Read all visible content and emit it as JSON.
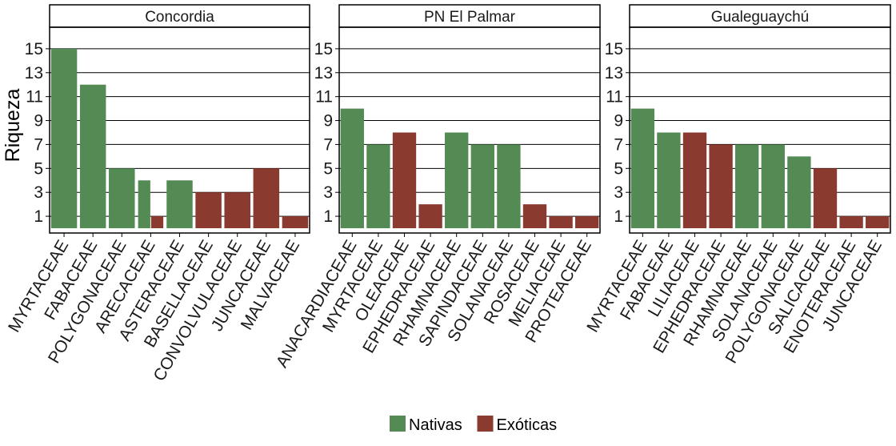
{
  "chart_data": {
    "type": "bar",
    "ylabel": "Riqueza",
    "yticks": [
      1,
      3,
      5,
      7,
      9,
      11,
      13,
      15
    ],
    "ylim": [
      -0.4,
      16.8
    ],
    "grid": true,
    "legend_position": "bottom",
    "colors": {
      "Nativas": "#548b54",
      "Exóticas": "#8b3a2f"
    },
    "legend": [
      {
        "label": "Nativas",
        "color": "#548b54"
      },
      {
        "label": "Exóticas",
        "color": "#8b3a2f"
      }
    ],
    "panels": [
      {
        "title": "Concordia",
        "categories": [
          "MYRTACEAE",
          "FABACEAE",
          "POLYGONACEAE",
          "ARECACEAE",
          "ASTERACEAE",
          "BASELLACEAE",
          "CONVOLVULACEAE",
          "JUNCACEAE",
          "MALVACEAE"
        ],
        "bars": [
          {
            "category": "MYRTACEAE",
            "group": "Nativas",
            "value": 15
          },
          {
            "category": "FABACEAE",
            "group": "Nativas",
            "value": 12
          },
          {
            "category": "POLYGONACEAE",
            "group": "Nativas",
            "value": 5
          },
          {
            "category": "ARECACEAE",
            "group": "Nativas",
            "value": 4
          },
          {
            "category": "ARECACEAE",
            "group": "Exóticas",
            "value": 1
          },
          {
            "category": "ASTERACEAE",
            "group": "Nativas",
            "value": 4
          },
          {
            "category": "BASELLACEAE",
            "group": "Exóticas",
            "value": 3
          },
          {
            "category": "CONVOLVULACEAE",
            "group": "Exóticas",
            "value": 3
          },
          {
            "category": "JUNCACEAE",
            "group": "Exóticas",
            "value": 5
          },
          {
            "category": "MALVACEAE",
            "group": "Exóticas",
            "value": 1
          }
        ]
      },
      {
        "title": "PN El Palmar",
        "categories": [
          "ANACARDIACEAE",
          "MYRTACEAE",
          "OLEACEAE",
          "EPHEDRACEAE",
          "RHAMNACEAE",
          "SAPINDACEAE",
          "SOLANACEAE",
          "ROSACEAE",
          "MELIACEAE",
          "PROTEACEAE"
        ],
        "bars": [
          {
            "category": "ANACARDIACEAE",
            "group": "Nativas",
            "value": 10
          },
          {
            "category": "MYRTACEAE",
            "group": "Nativas",
            "value": 7
          },
          {
            "category": "OLEACEAE",
            "group": "Exóticas",
            "value": 8
          },
          {
            "category": "EPHEDRACEAE",
            "group": "Exóticas",
            "value": 2
          },
          {
            "category": "RHAMNACEAE",
            "group": "Nativas",
            "value": 8
          },
          {
            "category": "SAPINDACEAE",
            "group": "Nativas",
            "value": 7
          },
          {
            "category": "SOLANACEAE",
            "group": "Nativas",
            "value": 7
          },
          {
            "category": "ROSACEAE",
            "group": "Exóticas",
            "value": 2
          },
          {
            "category": "MELIACEAE",
            "group": "Exóticas",
            "value": 1
          },
          {
            "category": "PROTEACEAE",
            "group": "Exóticas",
            "value": 1
          }
        ]
      },
      {
        "title": "Gualeguaychú",
        "categories": [
          "MYRTACEAE",
          "FABACEAE",
          "LILIACEAE",
          "EPHEDRACEAE",
          "RHAMNACEAE",
          "SOLANACEAE",
          "POLYGONACEAE",
          "SALICACEAE",
          "ENOTERACEAE",
          "JUNCACEAE"
        ],
        "bars": [
          {
            "category": "MYRTACEAE",
            "group": "Nativas",
            "value": 10
          },
          {
            "category": "FABACEAE",
            "group": "Nativas",
            "value": 8
          },
          {
            "category": "LILIACEAE",
            "group": "Exóticas",
            "value": 8
          },
          {
            "category": "EPHEDRACEAE",
            "group": "Exóticas",
            "value": 7
          },
          {
            "category": "RHAMNACEAE",
            "group": "Nativas",
            "value": 7
          },
          {
            "category": "SOLANACEAE",
            "group": "Nativas",
            "value": 7
          },
          {
            "category": "POLYGONACEAE",
            "group": "Nativas",
            "value": 6
          },
          {
            "category": "SALICACEAE",
            "group": "Exóticas",
            "value": 5
          },
          {
            "category": "ENOTERACEAE",
            "group": "Exóticas",
            "value": 1
          },
          {
            "category": "JUNCACEAE",
            "group": "Exóticas",
            "value": 1
          }
        ]
      }
    ]
  }
}
